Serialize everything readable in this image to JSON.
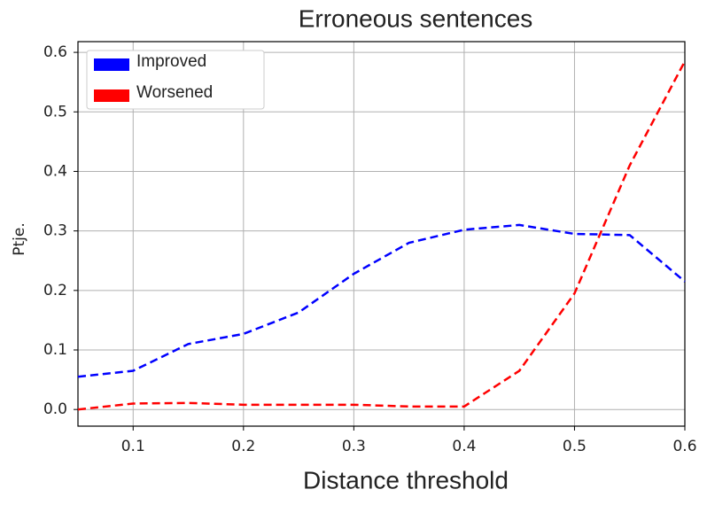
{
  "chart_data": {
    "type": "line",
    "title": "Erroneous sentences",
    "x_label": "Distance threshold",
    "y_label": "Ptje.",
    "x": [
      0.05,
      0.1,
      0.15,
      0.2,
      0.25,
      0.3,
      0.35,
      0.4,
      0.45,
      0.5,
      0.55,
      0.6
    ],
    "series": [
      {
        "name": "Improved",
        "color": "#0000ff",
        "values": [
          0.055,
          0.065,
          0.11,
          0.127,
          0.163,
          0.228,
          0.28,
          0.302,
          0.31,
          0.295,
          0.293,
          0.215
        ]
      },
      {
        "name": "Worsened",
        "color": "#ff0000",
        "values": [
          0.0,
          0.01,
          0.011,
          0.008,
          0.008,
          0.008,
          0.005,
          0.005,
          0.065,
          0.195,
          0.41,
          0.585
        ]
      }
    ],
    "xlim": [
      0.05,
      0.6
    ],
    "xticks": [
      0.1,
      0.2,
      0.3,
      0.4,
      0.5,
      0.6
    ],
    "ylim": [
      -0.028,
      0.618
    ],
    "yticks": [
      {
        "value": 0,
        "label": "0.0"
      },
      0.1,
      0.2,
      0.3,
      0.4,
      0.5,
      0.6
    ],
    "grid": true,
    "legend": "upper-left",
    "dashed": true
  }
}
